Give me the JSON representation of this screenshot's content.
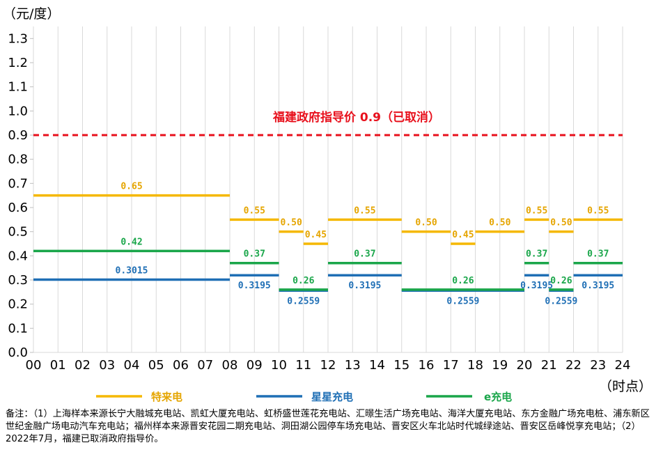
{
  "chart_data": {
    "type": "line",
    "y_unit_label": "（元/度）",
    "x_unit_label": "（时点）",
    "x_ticks": [
      "00",
      "01",
      "02",
      "03",
      "04",
      "05",
      "06",
      "07",
      "08",
      "09",
      "10",
      "11",
      "12",
      "13",
      "14",
      "15",
      "16",
      "17",
      "18",
      "19",
      "20",
      "21",
      "22",
      "23",
      "24"
    ],
    "y_ticks": [
      "0.0",
      "0.1",
      "0.2",
      "0.3",
      "0.4",
      "0.5",
      "0.6",
      "0.7",
      "0.8",
      "0.9",
      "1.0",
      "1.1",
      "1.2",
      "1.3"
    ],
    "ylim": [
      0,
      1.35
    ],
    "xlim": [
      0,
      24
    ],
    "grid": "vertical",
    "reference_line": {
      "value": 0.9,
      "label": "福建政府指导价 0.9（已取消）",
      "color": "#e8101c"
    },
    "series": [
      {
        "name": "特来电",
        "color": "#f5b800",
        "segments": [
          {
            "x0": 0,
            "x1": 8,
            "y": 0.65,
            "label": "0.65"
          },
          {
            "x0": 8,
            "x1": 10,
            "y": 0.55,
            "label": "0.55"
          },
          {
            "x0": 10,
            "x1": 11,
            "y": 0.5,
            "label": "0.50"
          },
          {
            "x0": 11,
            "x1": 12,
            "y": 0.45,
            "label": "0.45"
          },
          {
            "x0": 12,
            "x1": 15,
            "y": 0.55,
            "label": "0.55"
          },
          {
            "x0": 15,
            "x1": 17,
            "y": 0.5,
            "label": "0.50"
          },
          {
            "x0": 17,
            "x1": 18,
            "y": 0.45,
            "label": "0.45"
          },
          {
            "x0": 18,
            "x1": 20,
            "y": 0.5,
            "label": "0.50"
          },
          {
            "x0": 20,
            "x1": 21,
            "y": 0.55,
            "label": "0.55"
          },
          {
            "x0": 21,
            "x1": 22,
            "y": 0.5,
            "label": "0.50"
          },
          {
            "x0": 22,
            "x1": 24,
            "y": 0.55,
            "label": "0.55"
          }
        ]
      },
      {
        "name": "星星充电",
        "color": "#1f6fb5",
        "segments": [
          {
            "x0": 0,
            "x1": 8,
            "y": 0.3015,
            "label": "0.3015"
          },
          {
            "x0": 8,
            "x1": 10,
            "y": 0.3195,
            "label": "0.3195"
          },
          {
            "x0": 10,
            "x1": 12,
            "y": 0.2559,
            "label": "0.2559"
          },
          {
            "x0": 12,
            "x1": 15,
            "y": 0.3195,
            "label": "0.3195"
          },
          {
            "x0": 15,
            "x1": 20,
            "y": 0.2559,
            "label": "0.2559"
          },
          {
            "x0": 20,
            "x1": 21,
            "y": 0.3195,
            "label": "0.3195"
          },
          {
            "x0": 21,
            "x1": 22,
            "y": 0.2559,
            "label": "0.2559"
          },
          {
            "x0": 22,
            "x1": 24,
            "y": 0.3195,
            "label": "0.3195"
          }
        ]
      },
      {
        "name": "e充电",
        "color": "#1aa64a",
        "segments": [
          {
            "x0": 0,
            "x1": 8,
            "y": 0.42,
            "label": "0.42"
          },
          {
            "x0": 8,
            "x1": 10,
            "y": 0.37,
            "label": "0.37"
          },
          {
            "x0": 10,
            "x1": 12,
            "y": 0.26,
            "label": "0.26"
          },
          {
            "x0": 12,
            "x1": 15,
            "y": 0.37,
            "label": "0.37"
          },
          {
            "x0": 15,
            "x1": 20,
            "y": 0.26,
            "label": "0.26"
          },
          {
            "x0": 20,
            "x1": 21,
            "y": 0.37,
            "label": "0.37"
          },
          {
            "x0": 21,
            "x1": 22,
            "y": 0.26,
            "label": "0.26"
          },
          {
            "x0": 22,
            "x1": 24,
            "y": 0.37,
            "label": "0.37"
          }
        ]
      }
    ]
  },
  "note": "备注：（1）上海样本来源长宁大融城充电站、凯虹大厦充电站、虹桥盛世莲花充电站、汇暻生活广场充电站、海洋大厦充电站、东方金融广场充电桩、浦东新区世纪金融广场电动汽车充电站；福州样本来源晋安花园二期充电站、洞田湖公园停车场充电站、晋安区火车北站时代城绿途站、晋安区岳峰悦享充电站；（2）2022年7月，福建已取消政府指导价。"
}
